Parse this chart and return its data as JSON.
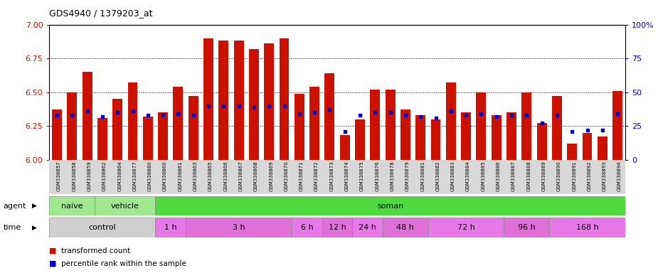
{
  "title": "GDS4940 / 1379203_at",
  "samples": [
    "GSM338857",
    "GSM338858",
    "GSM338859",
    "GSM338862",
    "GSM338864",
    "GSM338877",
    "GSM338880",
    "GSM338860",
    "GSM338861",
    "GSM338863",
    "GSM338865",
    "GSM338866",
    "GSM338867",
    "GSM338868",
    "GSM338869",
    "GSM338870",
    "GSM338871",
    "GSM338872",
    "GSM338873",
    "GSM338874",
    "GSM338875",
    "GSM338876",
    "GSM338878",
    "GSM338879",
    "GSM338881",
    "GSM338882",
    "GSM338883",
    "GSM338884",
    "GSM338885",
    "GSM338886",
    "GSM338887",
    "GSM338888",
    "GSM338889",
    "GSM338890",
    "GSM338891",
    "GSM338892",
    "GSM338893",
    "GSM338894"
  ],
  "transformed_counts": [
    6.37,
    6.5,
    6.65,
    6.31,
    6.45,
    6.57,
    6.32,
    6.35,
    6.54,
    6.47,
    6.9,
    6.88,
    6.88,
    6.82,
    6.86,
    6.9,
    6.49,
    6.54,
    6.64,
    6.18,
    6.3,
    6.52,
    6.52,
    6.37,
    6.33,
    6.3,
    6.57,
    6.35,
    6.5,
    6.33,
    6.35,
    6.5,
    6.27,
    6.47,
    6.12,
    6.2,
    6.17,
    6.51
  ],
  "percentile_ranks": [
    33,
    33,
    36,
    32,
    35,
    36,
    33,
    33,
    34,
    33,
    40,
    40,
    40,
    39,
    40,
    40,
    34,
    35,
    37,
    21,
    33,
    35,
    35,
    33,
    32,
    31,
    36,
    33,
    34,
    32,
    33,
    33,
    27,
    33,
    21,
    22,
    22,
    34
  ],
  "ylim_left": [
    6.0,
    7.0
  ],
  "ylim_right": [
    0,
    100
  ],
  "yticks_left": [
    6.0,
    6.25,
    6.5,
    6.75,
    7.0
  ],
  "yticks_right": [
    0,
    25,
    50,
    75,
    100
  ],
  "bar_color": "#cc1100",
  "dot_color": "#0000cc",
  "plot_bg": "#e8e8e0",
  "agent_groups": [
    {
      "label": "naive",
      "start": 0,
      "end": 3,
      "color": "#a0e890"
    },
    {
      "label": "vehicle",
      "start": 3,
      "end": 7,
      "color": "#a0e890"
    },
    {
      "label": "soman",
      "start": 7,
      "end": 38,
      "color": "#50d840"
    }
  ],
  "time_groups": [
    {
      "label": "control",
      "start": 0,
      "end": 7,
      "color": "#d0d0d0"
    },
    {
      "label": "1 h",
      "start": 7,
      "end": 9,
      "color": "#e878e8"
    },
    {
      "label": "3 h",
      "start": 9,
      "end": 16,
      "color": "#e070d8"
    },
    {
      "label": "6 h",
      "start": 16,
      "end": 18,
      "color": "#e878e8"
    },
    {
      "label": "12 h",
      "start": 18,
      "end": 20,
      "color": "#e070d8"
    },
    {
      "label": "24 h",
      "start": 20,
      "end": 22,
      "color": "#e878e8"
    },
    {
      "label": "48 h",
      "start": 22,
      "end": 25,
      "color": "#e070d8"
    },
    {
      "label": "72 h",
      "start": 25,
      "end": 30,
      "color": "#e878e8"
    },
    {
      "label": "96 h",
      "start": 30,
      "end": 33,
      "color": "#e070d8"
    },
    {
      "label": "168 h",
      "start": 33,
      "end": 38,
      "color": "#e878e8"
    }
  ]
}
